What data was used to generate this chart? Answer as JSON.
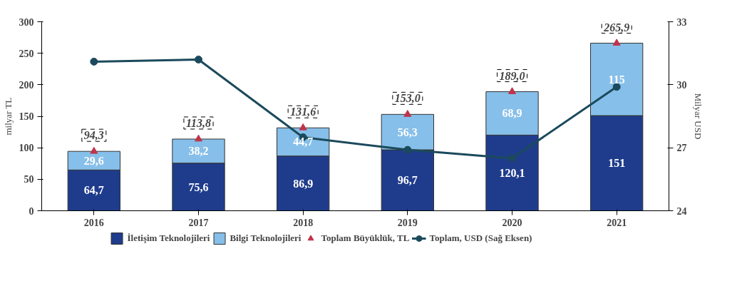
{
  "chart_data": {
    "type": "bar",
    "stacked": true,
    "categories": [
      "2016",
      "2017",
      "2018",
      "2019",
      "2020",
      "2021"
    ],
    "ylabel": "milyar TL",
    "y2label": "Milyar USD",
    "ylim": [
      0,
      300
    ],
    "yticks": [
      0,
      50,
      100,
      150,
      200,
      250,
      300
    ],
    "y2lim": [
      24,
      33
    ],
    "y2ticks": [
      24,
      27,
      30,
      33
    ],
    "grid": false,
    "legend": "bottom",
    "series": [
      {
        "name": "İletişim Teknolojileri",
        "color": "#1f3c8c",
        "values": [
          64.7,
          75.6,
          86.9,
          96.7,
          120.1,
          151
        ],
        "value_labels": [
          "64,7",
          "75,6",
          "86,9",
          "96,7",
          "120,1",
          "151"
        ]
      },
      {
        "name": "Bilgi Teknolojileri",
        "color": "#86bfe9",
        "values": [
          29.6,
          38.2,
          44.7,
          56.3,
          68.9,
          115
        ],
        "value_labels": [
          "29,6",
          "38,2",
          "44,7",
          "56,3",
          "68,9",
          "115"
        ]
      },
      {
        "name": "Toplam Büyüklük, TL",
        "type": "scatter",
        "marker": "triangle",
        "color": "#c0334a",
        "values": [
          94.3,
          113.8,
          131.6,
          153.0,
          189.0,
          265.9
        ],
        "value_labels": [
          "94,3",
          "113,8",
          "131,6",
          "153,0",
          "189,0",
          "265,9"
        ]
      },
      {
        "name": "Toplam, USD (Sağ Eksen)",
        "type": "line",
        "axis": "y2",
        "marker": "circle",
        "color": "#1b4a5c",
        "values": [
          31.1,
          31.2,
          27.5,
          26.9,
          26.5,
          29.9
        ]
      }
    ]
  }
}
